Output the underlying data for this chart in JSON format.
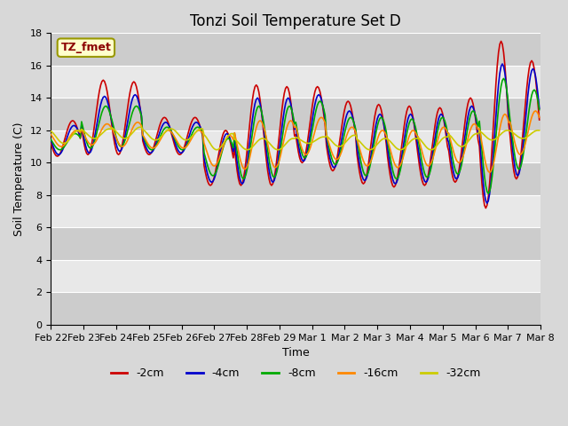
{
  "title": "Tonzi Soil Temperature Set D",
  "xlabel": "Time",
  "ylabel": "Soil Temperature (C)",
  "ylim": [
    0,
    18
  ],
  "yticks": [
    0,
    2,
    4,
    6,
    8,
    10,
    12,
    14,
    16,
    18
  ],
  "x_labels": [
    "Feb 22",
    "Feb 23",
    "Feb 24",
    "Feb 25",
    "Feb 26",
    "Feb 27",
    "Feb 28",
    "Feb 29",
    "Mar 1",
    "Mar 2",
    "Mar 3",
    "Mar 4",
    "Mar 5",
    "Mar 6",
    "Mar 7",
    "Mar 8"
  ],
  "legend_label": "TZ_fmet",
  "series_labels": [
    "-2cm",
    "-4cm",
    "-8cm",
    "-16cm",
    "-32cm"
  ],
  "series_colors": [
    "#cc0000",
    "#0000cc",
    "#00aa00",
    "#ff8800",
    "#cccc00"
  ],
  "n_days": 16,
  "n_pts": 384,
  "daily_min_2cm": [
    10.4,
    10.5,
    10.5,
    10.5,
    10.5,
    8.6,
    8.6,
    8.6,
    10.0,
    9.5,
    8.7,
    8.5,
    8.6,
    8.8,
    7.2,
    9.0
  ],
  "daily_max_2cm": [
    12.6,
    15.1,
    15.0,
    12.8,
    12.8,
    12.0,
    14.8,
    14.7,
    14.7,
    13.8,
    13.6,
    13.5,
    13.4,
    14.0,
    17.5,
    16.3
  ],
  "daily_min_4cm": [
    10.5,
    10.6,
    10.7,
    10.6,
    10.6,
    8.8,
    8.7,
    8.8,
    10.1,
    9.7,
    8.9,
    8.7,
    8.8,
    9.0,
    7.5,
    9.2
  ],
  "daily_max_4cm": [
    12.3,
    14.1,
    14.2,
    12.5,
    12.5,
    11.8,
    14.0,
    14.0,
    14.2,
    13.2,
    13.0,
    13.0,
    13.0,
    13.5,
    16.1,
    15.8
  ],
  "daily_min_8cm": [
    10.8,
    10.9,
    11.0,
    10.8,
    10.8,
    9.2,
    9.0,
    9.1,
    10.3,
    9.9,
    9.2,
    9.0,
    9.1,
    9.3,
    8.1,
    9.6
  ],
  "daily_max_8cm": [
    11.8,
    13.5,
    13.5,
    12.2,
    12.2,
    11.5,
    13.5,
    13.5,
    13.8,
    12.8,
    12.8,
    12.7,
    12.8,
    13.2,
    15.2,
    14.5
  ],
  "daily_min_16cm": [
    11.0,
    11.1,
    11.0,
    10.9,
    10.9,
    9.8,
    9.6,
    9.7,
    10.5,
    10.2,
    9.8,
    9.7,
    9.8,
    10.0,
    9.4,
    10.5
  ],
  "daily_max_16cm": [
    12.0,
    12.4,
    12.5,
    12.0,
    12.0,
    11.7,
    12.6,
    12.6,
    12.8,
    12.2,
    12.0,
    12.0,
    12.2,
    12.4,
    13.0,
    13.2
  ],
  "daily_min_32cm": [
    11.2,
    11.5,
    11.5,
    11.4,
    11.4,
    10.8,
    10.8,
    10.8,
    11.2,
    11.0,
    10.8,
    10.8,
    10.8,
    11.0,
    11.4,
    11.5
  ],
  "daily_max_32cm": [
    12.0,
    12.1,
    12.2,
    12.1,
    12.1,
    11.8,
    11.5,
    11.5,
    11.6,
    11.7,
    11.5,
    11.5,
    11.6,
    11.8,
    12.0,
    12.0
  ],
  "peak_hour": 14,
  "trough_hour": 5,
  "background_color": "#d8d8d8",
  "plot_bg_color": "#e0e0e0",
  "band_color_dark": "#cccccc",
  "band_color_light": "#e8e8e8",
  "title_fontsize": 12,
  "axis_label_fontsize": 9,
  "tick_fontsize": 8,
  "line_width": 1.2
}
